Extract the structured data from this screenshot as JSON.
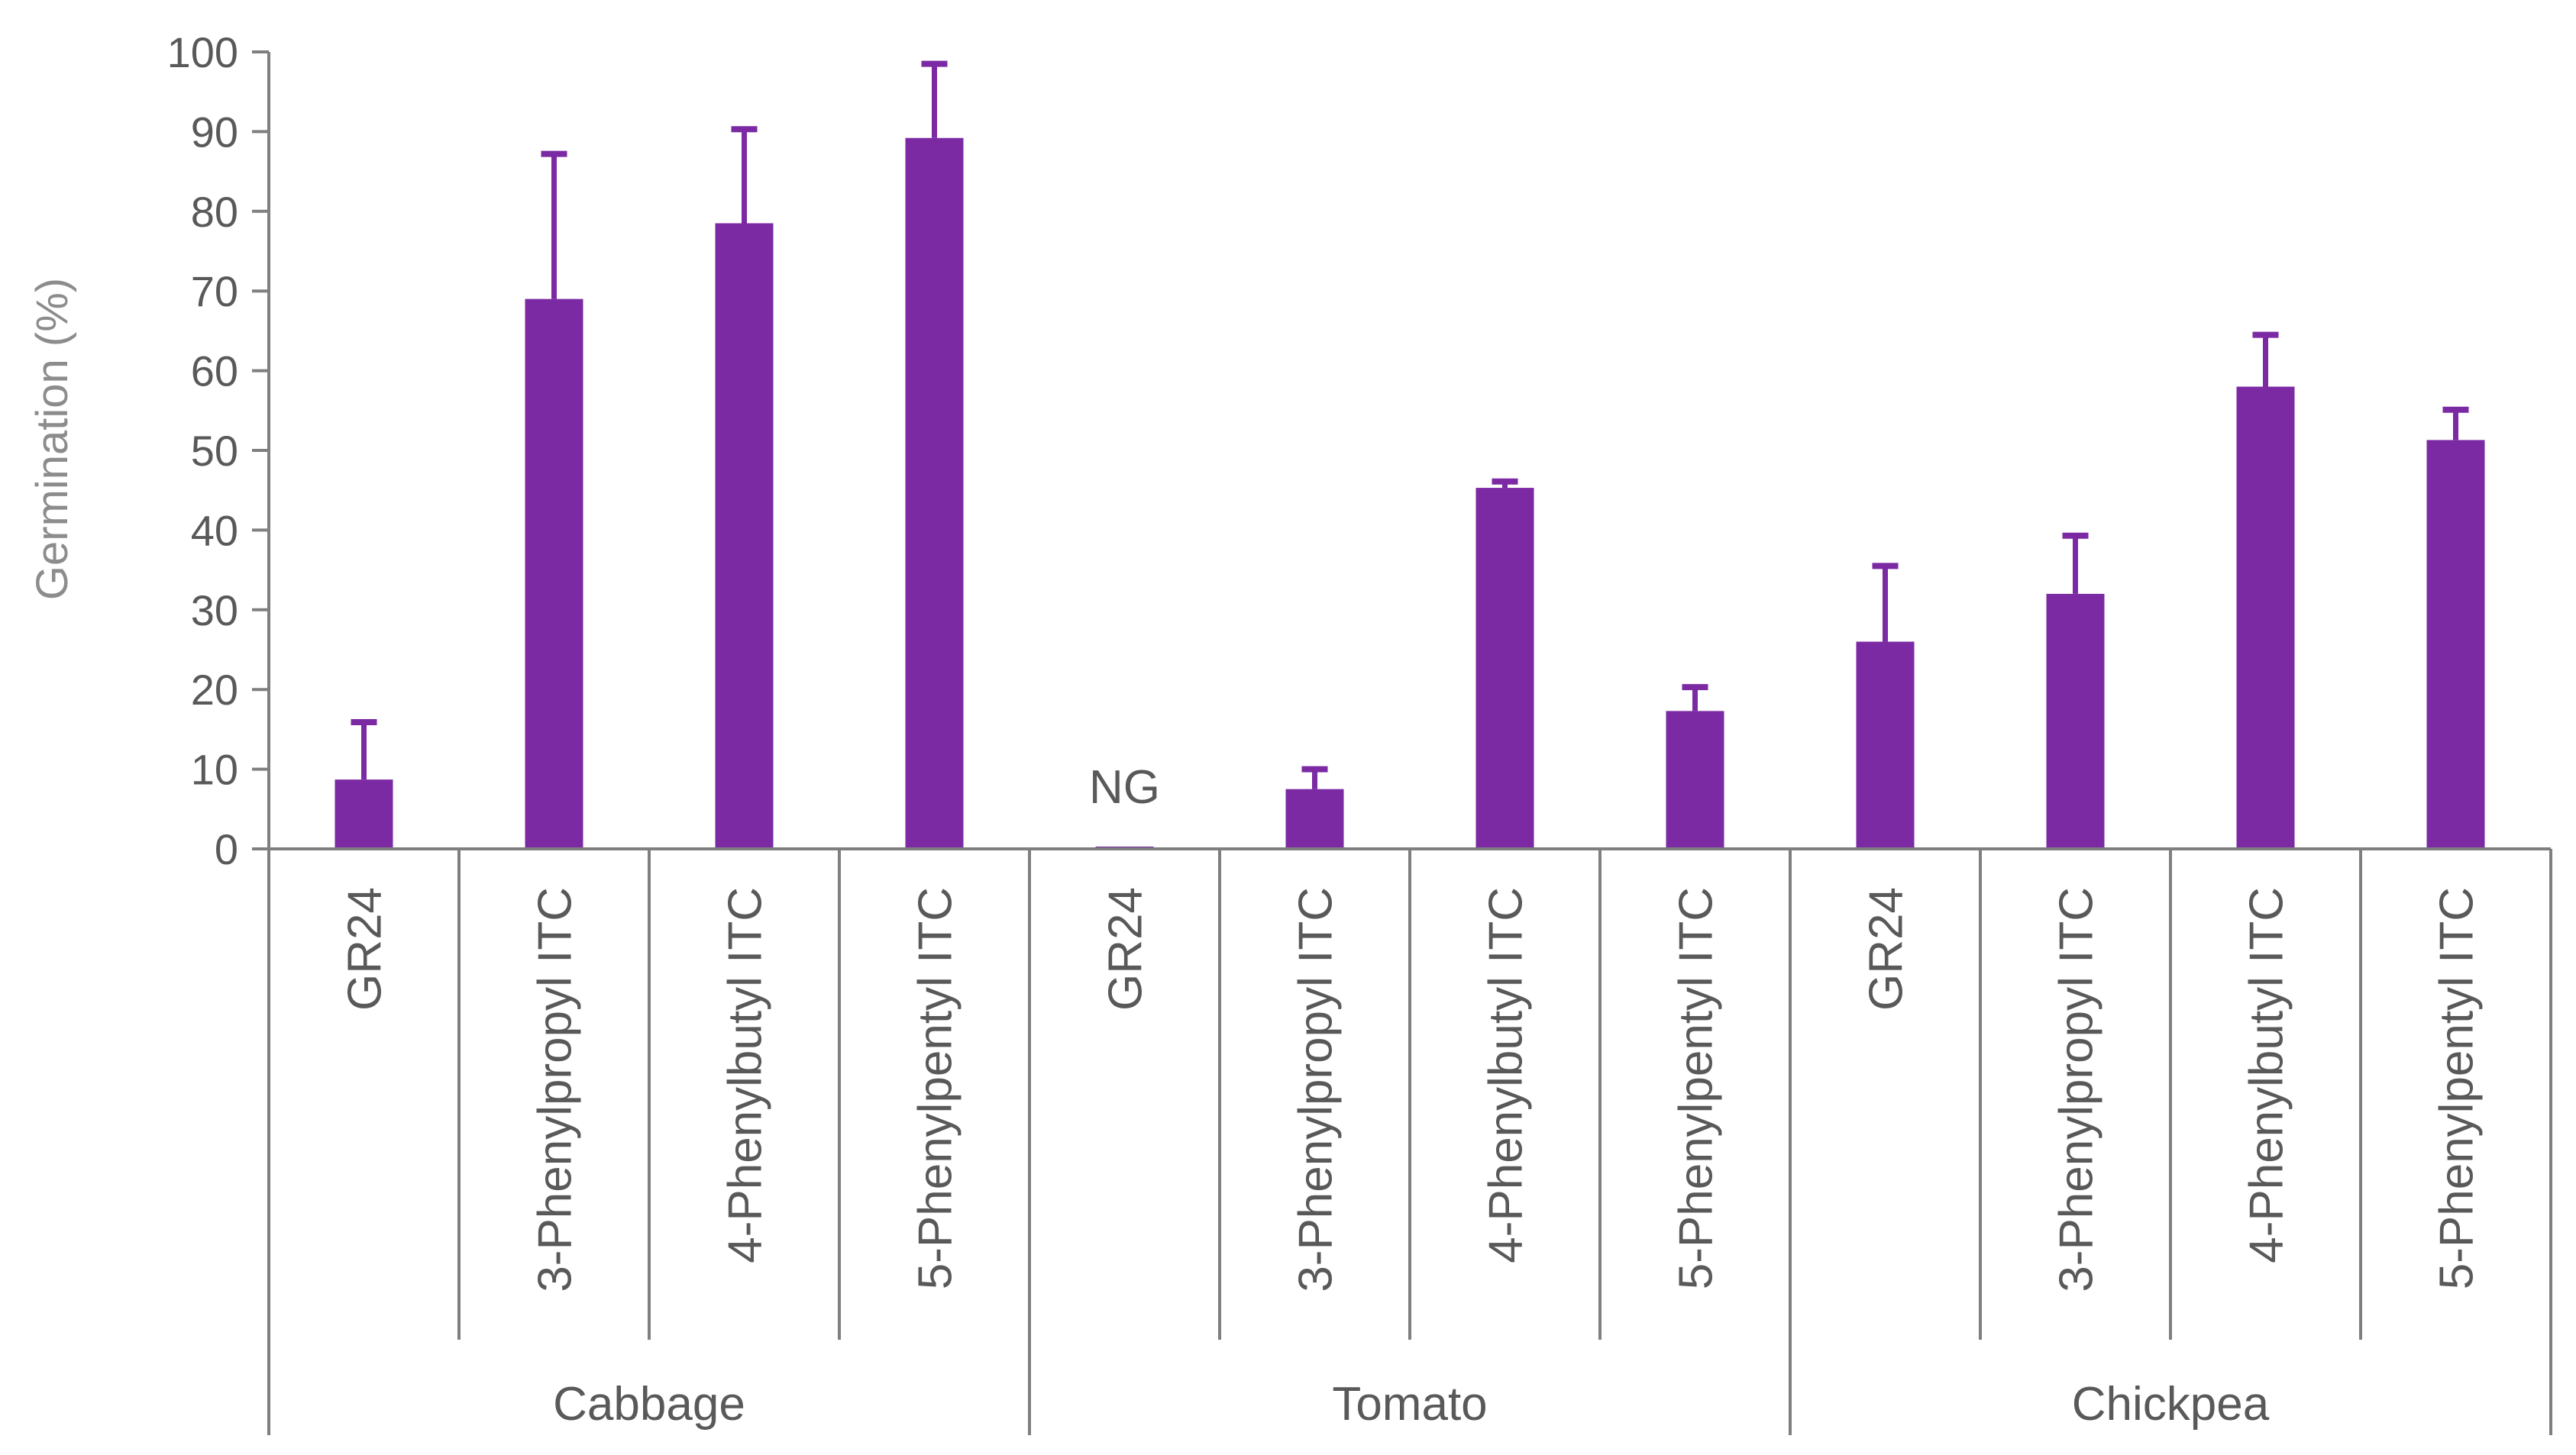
{
  "chart_data": {
    "type": "bar",
    "ylabel": "Germination (%)",
    "ylim": [
      0,
      100
    ],
    "yticks": [
      0,
      10,
      20,
      30,
      40,
      50,
      60,
      70,
      80,
      90,
      100
    ],
    "bar_color": "#7b2aa3",
    "axis_color": "#7f7f7f",
    "groups": [
      {
        "name": "Cabbage",
        "categories": [
          "GR24",
          "3-Phenylpropyl ITC",
          "4-Phenylbutyl ITC",
          "5-Phenylpentyl ITC"
        ],
        "values": [
          8.7,
          69,
          78.5,
          89.2
        ],
        "errors": [
          7.2,
          18.2,
          11.8,
          9.3
        ],
        "notes": [
          "",
          "",
          "",
          ""
        ]
      },
      {
        "name": "Tomato",
        "categories": [
          "GR24",
          "3-Phenylpropyl ITC",
          "4-Phenylbutyl ITC",
          "5-Phenylpentyl ITC"
        ],
        "values": [
          0,
          7.5,
          45.3,
          17.3
        ],
        "errors": [
          0,
          2.5,
          0.8,
          3
        ],
        "notes": [
          "NG",
          "",
          "",
          ""
        ]
      },
      {
        "name": "Chickpea",
        "categories": [
          "GR24",
          "3-Phenylpropyl ITC",
          "4-Phenylbutyl ITC",
          "5-Phenylpentyl ITC"
        ],
        "values": [
          26,
          32,
          58,
          51.3
        ],
        "errors": [
          9.5,
          7.3,
          6.5,
          3.8
        ],
        "notes": [
          "",
          "",
          "",
          ""
        ]
      }
    ]
  }
}
